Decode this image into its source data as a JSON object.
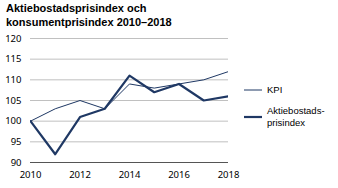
{
  "chart_data": {
    "type": "line",
    "title": "Aktiebostadsprisindex och\nkonsumentprisindex 2010–2018",
    "x": [
      2010,
      2011,
      2012,
      2013,
      2014,
      2015,
      2016,
      2017,
      2018
    ],
    "series": [
      {
        "name": "KPI",
        "color": "#1F3864",
        "values": [
          100,
          103,
          105,
          103,
          109,
          108,
          109,
          110,
          112
        ]
      },
      {
        "name": "Aktiebostads-\nprisindex",
        "color": "#1F3864",
        "values": [
          100,
          92,
          101,
          103,
          111,
          107,
          109,
          105,
          106
        ]
      }
    ],
    "ylim": [
      90,
      120
    ],
    "yticks": [
      90,
      95,
      100,
      105,
      110,
      115,
      120
    ],
    "xlim": [
      2010,
      2018
    ],
    "xticks": [
      2010,
      2012,
      2014,
      2016,
      2018
    ],
    "grid": "y",
    "legend": "right"
  }
}
